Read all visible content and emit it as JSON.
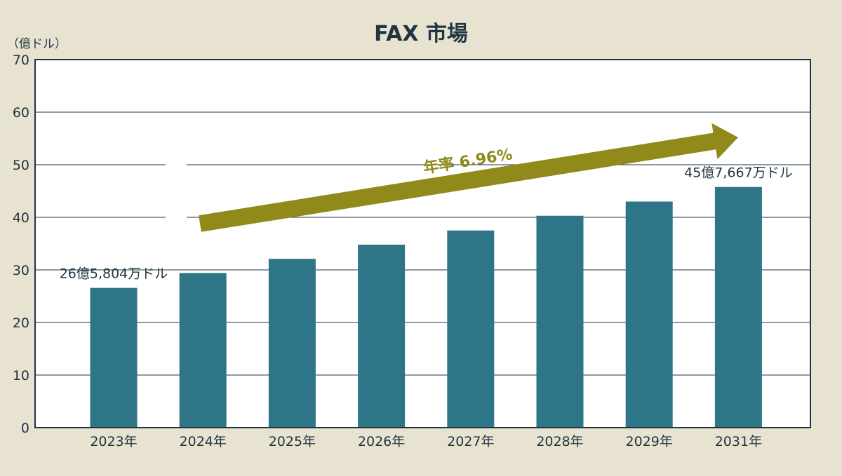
{
  "chart_data": {
    "type": "bar",
    "title": "FAX 市場",
    "unit_label": "（億ドル）",
    "categories": [
      "2023年",
      "2024年",
      "2025年",
      "2026年",
      "2027年",
      "2028年",
      "2029年",
      "2031年"
    ],
    "series": [
      {
        "values": [
          26.58,
          29.4,
          32.1,
          34.8,
          37.5,
          40.3,
          43.0,
          45.77
        ]
      }
    ],
    "ylim": [
      0,
      70
    ],
    "yticks": [
      0,
      10,
      20,
      30,
      40,
      50,
      60,
      70
    ],
    "grid": true,
    "data_labels": [
      {
        "index": 0,
        "text": "26億5,804万ドル"
      },
      {
        "index": 7,
        "text": "45億7,667万ドル"
      }
    ],
    "annotation": {
      "text": "年率 6.96%"
    }
  },
  "colors": {
    "background": "#e8e2d1",
    "plot_background": "#ffffff",
    "bar": "#2e7587",
    "arrow": "#8f8a1a",
    "text": "#1f3540",
    "axis": "#1f3540"
  }
}
